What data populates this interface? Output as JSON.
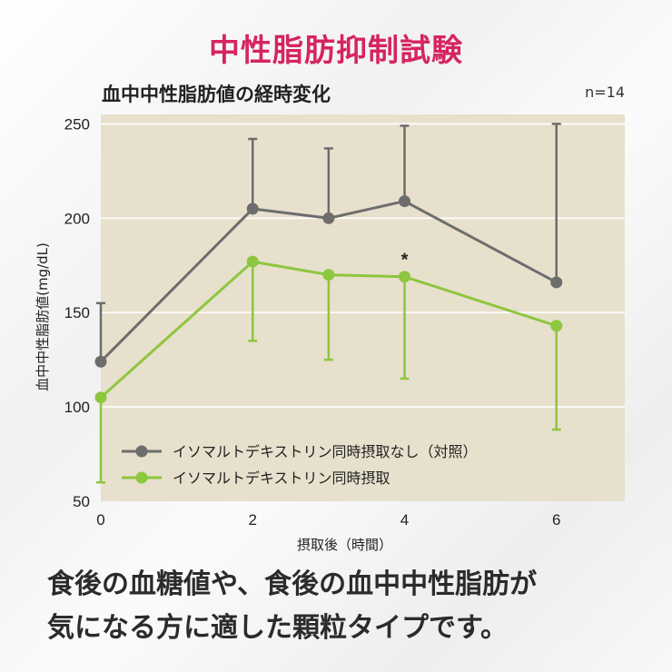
{
  "header": {
    "title": "中性脂肪抑制試験",
    "chart_title": "血中中性脂肪値の経時変化",
    "sample_size": "n=14"
  },
  "caption": {
    "line1": "食後の血糖値や、食後の血中中性脂肪が",
    "line2": "気になる方に適した顆粒タイプです。"
  },
  "colors": {
    "plot_bg": "#e7e0cc",
    "control": "#6d6d6d",
    "treatment": "#8dc63f"
  },
  "chart_data": {
    "type": "line",
    "title": "血中中性脂肪値の経時変化",
    "xlabel": "摂取後（時間）",
    "ylabel": "血中中性脂肪値(mg/dL)",
    "xlim": [
      0,
      6.9
    ],
    "ylim": [
      50,
      255
    ],
    "x_ticks": [
      0,
      2,
      4,
      6
    ],
    "y_ticks": [
      50,
      100,
      150,
      200,
      250
    ],
    "grid": true,
    "legend_position": "bottom-left",
    "series": [
      {
        "name": "イソマルトデキストリン同時摂取なし（対照）",
        "color": "#6d6d6d",
        "x": [
          0,
          2,
          3,
          4,
          6
        ],
        "y": [
          124,
          205,
          200,
          209,
          166
        ],
        "error": [
          31,
          37,
          37,
          40,
          84
        ],
        "error_direction": "up"
      },
      {
        "name": "イソマルトデキストリン同時摂取",
        "color": "#8dc63f",
        "x": [
          0,
          2,
          3,
          4,
          6
        ],
        "y": [
          105,
          177,
          170,
          169,
          143
        ],
        "error": [
          45,
          42,
          45,
          54,
          55
        ],
        "error_direction": "down"
      }
    ],
    "annotations": [
      {
        "text": "*",
        "x": 4,
        "y": 174
      }
    ]
  }
}
